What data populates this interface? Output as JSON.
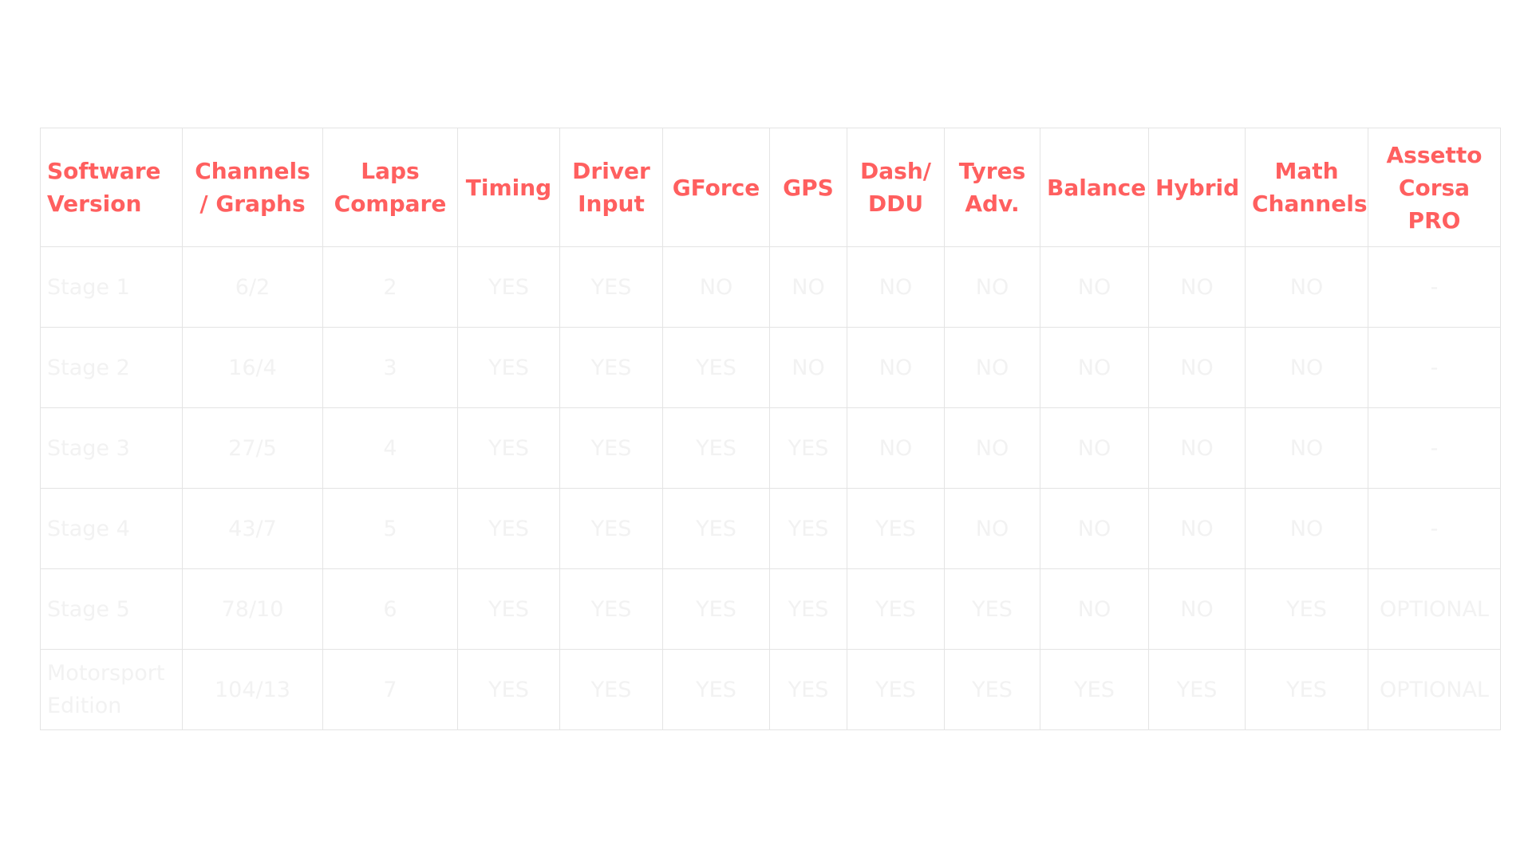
{
  "table": {
    "headers": [
      "Software Version",
      "Channels / Graphs",
      "Laps Compare",
      "Timing",
      "Driver Input",
      "GForce",
      "GPS",
      "Dash/ DDU",
      "Tyres Adv.",
      "Balance",
      "Hybrid",
      "Math Channels",
      "Assetto Corsa PRO"
    ],
    "rows": [
      [
        "Stage 1",
        "6/2",
        "2",
        "YES",
        "YES",
        "NO",
        "NO",
        "NO",
        "NO",
        "NO",
        "NO",
        "NO",
        "-"
      ],
      [
        "Stage 2",
        "16/4",
        "3",
        "YES",
        "YES",
        "YES",
        "NO",
        "NO",
        "NO",
        "NO",
        "NO",
        "NO",
        "-"
      ],
      [
        "Stage 3",
        "27/5",
        "4",
        "YES",
        "YES",
        "YES",
        "YES",
        "NO",
        "NO",
        "NO",
        "NO",
        "NO",
        "-"
      ],
      [
        "Stage 4",
        "43/7",
        "5",
        "YES",
        "YES",
        "YES",
        "YES",
        "YES",
        "NO",
        "NO",
        "NO",
        "NO",
        "-"
      ],
      [
        "Stage 5",
        "78/10",
        "6",
        "YES",
        "YES",
        "YES",
        "YES",
        "YES",
        "YES",
        "NO",
        "NO",
        "YES",
        "OPTIONAL"
      ],
      [
        "Motorsport Edition",
        "104/13",
        "7",
        "YES",
        "YES",
        "YES",
        "YES",
        "YES",
        "YES",
        "YES",
        "YES",
        "YES",
        "OPTIONAL"
      ]
    ]
  },
  "colors": {
    "header_text": "#ff5f5f",
    "cell_text": "#f2f2f2",
    "grid_lines": "#e4e4e4",
    "background": "#ffffff"
  }
}
